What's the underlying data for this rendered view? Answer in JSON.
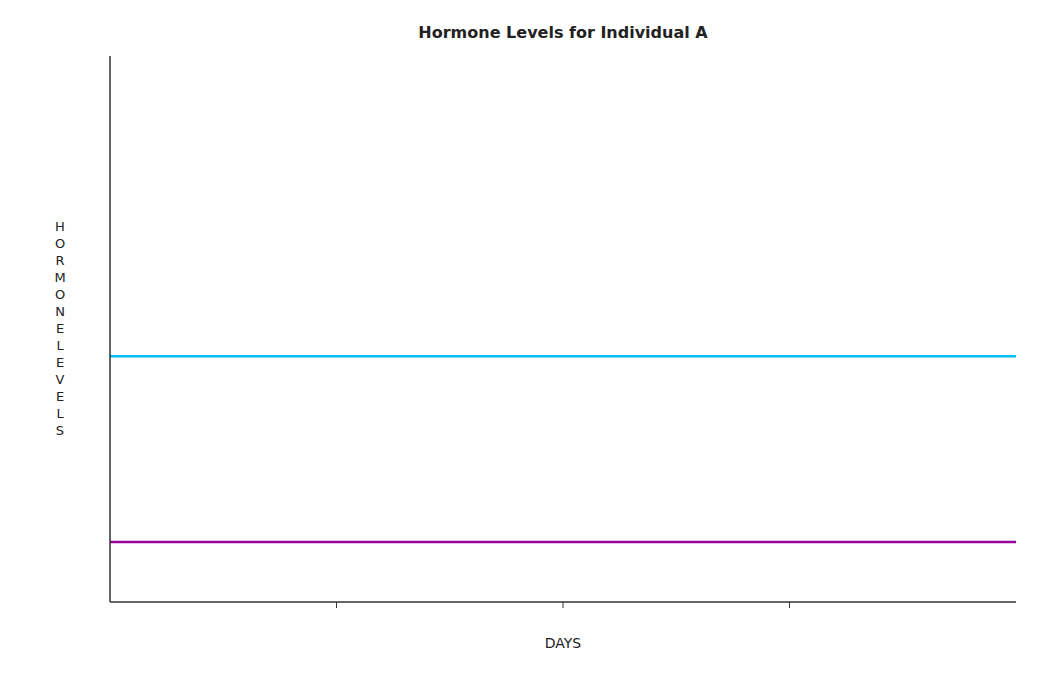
{
  "chart_data": {
    "type": "line",
    "title": "Hormone Levels for Individual A",
    "x_label": "DAYS",
    "y_label": "HORMONELEVELS",
    "x": [
      0,
      100
    ],
    "series": [
      {
        "color": "#00bfff",
        "values": [
          0.45,
          0.45
        ]
      },
      {
        "color": "#990099",
        "values": [
          0.11,
          0.11
        ]
      }
    ],
    "xlim": [
      0,
      100
    ],
    "ylim": [
      0,
      1
    ],
    "xticks": [
      25,
      50,
      75
    ],
    "tick_labels": false
  }
}
